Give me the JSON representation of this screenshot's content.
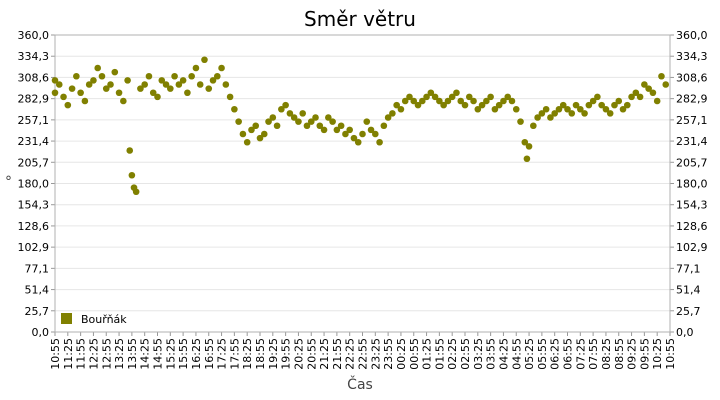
{
  "chart_data": {
    "type": "scatter",
    "title": "Směr větru",
    "xlabel": "Čas",
    "ylabel": "°",
    "ylim": [
      0,
      360
    ],
    "y_ticks": [
      "0,0",
      "25,7",
      "51,4",
      "77,1",
      "102,9",
      "128,6",
      "154,3",
      "180,0",
      "205,7",
      "231,4",
      "257,1",
      "282,9",
      "308,6",
      "334,3",
      "360,0"
    ],
    "x_ticks": [
      "10:55",
      "11:25",
      "11:55",
      "12:25",
      "12:55",
      "13:25",
      "13:55",
      "14:25",
      "14:55",
      "15:25",
      "15:55",
      "16:25",
      "16:55",
      "17:25",
      "17:55",
      "18:25",
      "18:55",
      "19:25",
      "19:55",
      "20:25",
      "20:55",
      "21:25",
      "21:55",
      "22:25",
      "22:55",
      "23:25",
      "23:55",
      "00:25",
      "00:55",
      "01:25",
      "01:55",
      "02:25",
      "02:55",
      "03:25",
      "03:55",
      "04:25",
      "04:55",
      "05:25",
      "05:55",
      "06:25",
      "06:55",
      "07:25",
      "07:55",
      "08:25",
      "08:55",
      "09:25",
      "09:55",
      "10:25",
      "10:55"
    ],
    "grid": true,
    "legend_position": "bottom-left",
    "color": "#808000",
    "series": [
      {
        "name": "Bouřňák",
        "x": [
          "10:55",
          "11:05",
          "11:15",
          "11:25",
          "11:35",
          "11:45",
          "11:55",
          "12:05",
          "12:15",
          "12:25",
          "12:35",
          "12:45",
          "12:55",
          "13:05",
          "13:15",
          "13:25",
          "13:35",
          "13:45",
          "13:50",
          "13:55",
          "14:00",
          "14:05",
          "14:15",
          "14:25",
          "14:35",
          "14:45",
          "14:55",
          "15:05",
          "15:15",
          "15:25",
          "15:35",
          "15:45",
          "15:55",
          "16:05",
          "16:15",
          "16:25",
          "16:35",
          "16:45",
          "16:55",
          "17:05",
          "17:15",
          "17:25",
          "17:35",
          "17:45",
          "17:55",
          "18:05",
          "18:15",
          "18:25",
          "18:35",
          "18:45",
          "18:55",
          "19:05",
          "19:15",
          "19:25",
          "19:35",
          "19:45",
          "19:55",
          "20:05",
          "20:15",
          "20:25",
          "20:35",
          "20:45",
          "20:55",
          "21:05",
          "21:15",
          "21:25",
          "21:35",
          "21:45",
          "21:55",
          "22:05",
          "22:15",
          "22:25",
          "22:35",
          "22:45",
          "22:55",
          "23:05",
          "23:15",
          "23:25",
          "23:35",
          "23:45",
          "23:55",
          "00:05",
          "00:15",
          "00:25",
          "00:35",
          "00:45",
          "00:55",
          "01:05",
          "01:15",
          "01:25",
          "01:35",
          "01:45",
          "01:55",
          "02:05",
          "02:15",
          "02:25",
          "02:35",
          "02:45",
          "02:55",
          "03:05",
          "03:15",
          "03:25",
          "03:35",
          "03:45",
          "03:55",
          "04:05",
          "04:15",
          "04:25",
          "04:35",
          "04:45",
          "04:55",
          "05:05",
          "05:15",
          "05:20",
          "05:25",
          "05:35",
          "05:45",
          "05:55",
          "06:05",
          "06:15",
          "06:25",
          "06:35",
          "06:45",
          "06:55",
          "07:05",
          "07:15",
          "07:25",
          "07:35",
          "07:45",
          "07:55",
          "08:05",
          "08:15",
          "08:25",
          "08:35",
          "08:45",
          "08:55",
          "09:05",
          "09:15",
          "09:25",
          "09:35",
          "09:45",
          "09:55",
          "10:05",
          "10:15",
          "10:25",
          "10:35",
          "10:45",
          "10:55"
        ],
        "y": [
          290,
          300,
          285,
          275,
          295,
          310,
          290,
          280,
          300,
          305,
          320,
          310,
          295,
          300,
          315,
          290,
          280,
          305,
          220,
          190,
          175,
          170,
          295,
          300,
          310,
          290,
          285,
          305,
          300,
          295,
          310,
          300,
          305,
          290,
          310,
          320,
          300,
          330,
          295,
          305,
          310,
          320,
          300,
          285,
          270,
          255,
          240,
          230,
          245,
          250,
          235,
          240,
          255,
          260,
          250,
          270,
          275,
          265,
          260,
          255,
          265,
          250,
          255,
          260,
          250,
          245,
          260,
          255,
          245,
          250,
          240,
          245,
          235,
          230,
          240,
          255,
          245,
          240,
          230,
          250,
          260,
          265,
          275,
          270,
          280,
          285,
          280,
          275,
          280,
          285,
          290,
          285,
          280,
          275,
          280,
          285,
          290,
          280,
          275,
          285,
          280,
          270,
          275,
          280,
          285,
          270,
          275,
          280,
          285,
          280,
          270,
          255,
          230,
          210,
          225,
          250,
          260,
          265,
          270,
          260,
          265,
          270,
          275,
          270,
          265,
          275,
          270,
          265,
          275,
          280,
          285,
          275,
          270,
          265,
          275,
          280,
          270,
          275,
          285,
          290,
          285,
          300,
          295,
          290,
          280,
          310,
          300,
          305
        ]
      }
    ]
  }
}
